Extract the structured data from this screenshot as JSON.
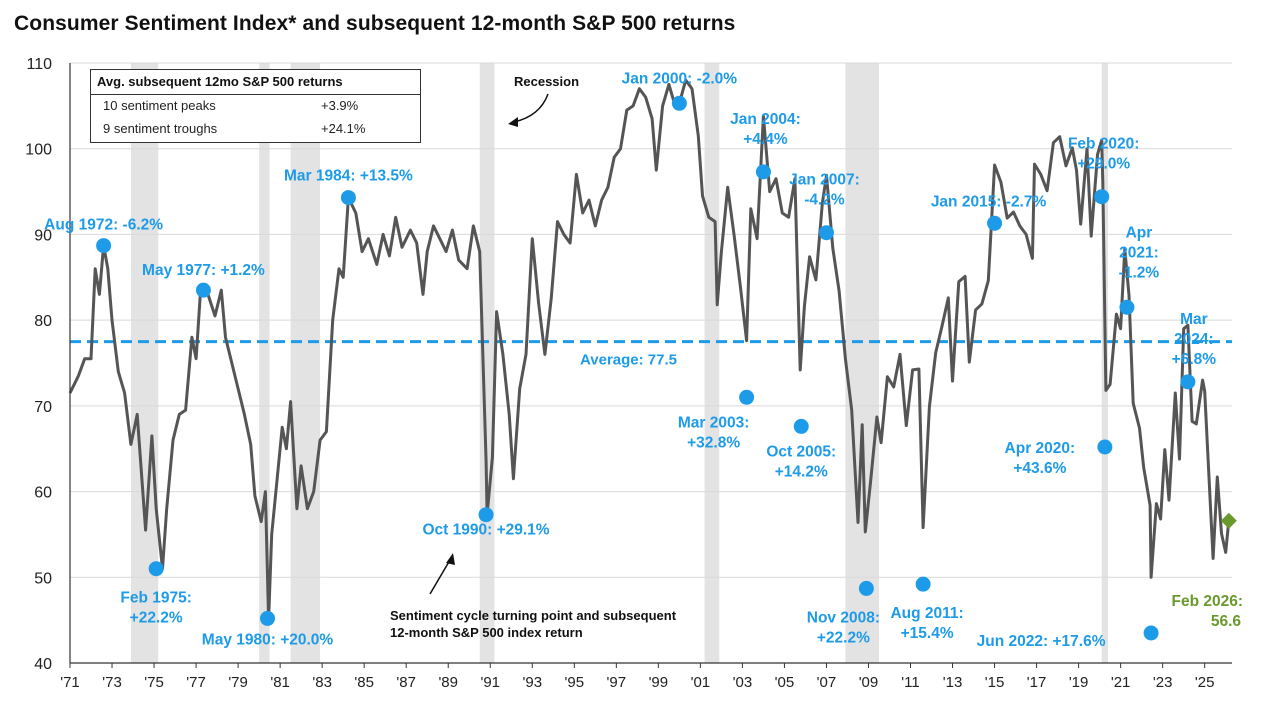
{
  "title": "Consumer Sentiment Index* and subsequent 12-month S&P 500 returns",
  "table": {
    "header": "Avg. subsequent 12mo S&P 500 returns",
    "rows": [
      {
        "label": "10 sentiment peaks",
        "value": "+3.9%"
      },
      {
        "label": "9 sentiment troughs",
        "value": "+24.1%"
      }
    ]
  },
  "annotations": {
    "recession": "Recession",
    "turning_point_line1": "Sentiment cycle turning point and subsequent",
    "turning_point_line2": "12-month S&P 500 index return"
  },
  "colors": {
    "line": "#555555",
    "marker": "#1e9be8",
    "label": "#1e9be8",
    "average": "#1e9be8",
    "latest": "#6a9a2e",
    "recession": "#e3e3e3",
    "grid": "#d9d9d9"
  },
  "chart_data": {
    "type": "line",
    "title": "Consumer Sentiment Index* and subsequent 12-month S&P 500 returns",
    "xlim": [
      1971,
      2026.3
    ],
    "ylim": [
      40,
      110
    ],
    "yticks": [
      40,
      50,
      60,
      70,
      80,
      90,
      100,
      110
    ],
    "xticks": [
      {
        "x": 1971,
        "label": "'71"
      },
      {
        "x": 1973,
        "label": "'73"
      },
      {
        "x": 1975,
        "label": "'75"
      },
      {
        "x": 1977,
        "label": "'77"
      },
      {
        "x": 1979,
        "label": "'79"
      },
      {
        "x": 1981,
        "label": "'81"
      },
      {
        "x": 1983,
        "label": "'83"
      },
      {
        "x": 1985,
        "label": "'85"
      },
      {
        "x": 1987,
        "label": "'87"
      },
      {
        "x": 1989,
        "label": "'89"
      },
      {
        "x": 1991,
        "label": "'91"
      },
      {
        "x": 1993,
        "label": "'93"
      },
      {
        "x": 1995,
        "label": "'95"
      },
      {
        "x": 1997,
        "label": "'97"
      },
      {
        "x": 1999,
        "label": "'99"
      },
      {
        "x": 2001,
        "label": "'01"
      },
      {
        "x": 2003,
        "label": "'03"
      },
      {
        "x": 2005,
        "label": "'05"
      },
      {
        "x": 2007,
        "label": "'07"
      },
      {
        "x": 2009,
        "label": "'09"
      },
      {
        "x": 2011,
        "label": "'11"
      },
      {
        "x": 2013,
        "label": "'13"
      },
      {
        "x": 2015,
        "label": "'15"
      },
      {
        "x": 2017,
        "label": "'17"
      },
      {
        "x": 2019,
        "label": "'19"
      },
      {
        "x": 2021,
        "label": "'21"
      },
      {
        "x": 2023,
        "label": "'23"
      },
      {
        "x": 2025,
        "label": "'25"
      }
    ],
    "grid": true,
    "recessions": [
      [
        1973.9,
        1975.2
      ],
      [
        1980.0,
        1980.5
      ],
      [
        1981.5,
        1982.9
      ],
      [
        1990.5,
        1991.2
      ],
      [
        2001.2,
        2001.9
      ],
      [
        2007.9,
        2009.5
      ],
      [
        2020.1,
        2020.4
      ]
    ],
    "average": {
      "value": 77.5,
      "label": "Average: 77.5"
    },
    "series": [
      {
        "values": [
          [
            1971.0,
            71.5
          ],
          [
            1971.4,
            73.5
          ],
          [
            1971.7,
            75.5
          ],
          [
            1972.0,
            75.5
          ],
          [
            1972.2,
            86.0
          ],
          [
            1972.4,
            83.0
          ],
          [
            1972.6,
            88.7
          ],
          [
            1972.8,
            86.0
          ],
          [
            1973.0,
            80.0
          ],
          [
            1973.3,
            74.0
          ],
          [
            1973.6,
            71.5
          ],
          [
            1973.9,
            65.5
          ],
          [
            1974.2,
            69.0
          ],
          [
            1974.6,
            55.5
          ],
          [
            1974.9,
            66.5
          ],
          [
            1975.1,
            58.0
          ],
          [
            1975.4,
            51.0
          ],
          [
            1975.6,
            58.0
          ],
          [
            1975.9,
            66.0
          ],
          [
            1976.2,
            69.0
          ],
          [
            1976.5,
            69.5
          ],
          [
            1976.8,
            78.0
          ],
          [
            1977.0,
            75.5
          ],
          [
            1977.2,
            83.0
          ],
          [
            1977.5,
            83.5
          ],
          [
            1977.7,
            82.0
          ],
          [
            1977.9,
            80.5
          ],
          [
            1978.2,
            83.5
          ],
          [
            1978.4,
            78.0
          ],
          [
            1978.7,
            75.0
          ],
          [
            1979.0,
            72.0
          ],
          [
            1979.3,
            69.0
          ],
          [
            1979.6,
            65.5
          ],
          [
            1979.8,
            59.5
          ],
          [
            1980.1,
            56.5
          ],
          [
            1980.3,
            60.0
          ],
          [
            1980.45,
            45.0
          ],
          [
            1980.6,
            55.0
          ],
          [
            1980.9,
            62.5
          ],
          [
            1981.1,
            67.5
          ],
          [
            1981.3,
            65.0
          ],
          [
            1981.5,
            70.5
          ],
          [
            1981.8,
            58.0
          ],
          [
            1982.0,
            63.0
          ],
          [
            1982.3,
            58.0
          ],
          [
            1982.6,
            60.0
          ],
          [
            1982.9,
            66.0
          ],
          [
            1983.2,
            67.0
          ],
          [
            1983.5,
            80.0
          ],
          [
            1983.8,
            86.0
          ],
          [
            1984.0,
            85.0
          ],
          [
            1984.25,
            94.3
          ],
          [
            1984.6,
            92.5
          ],
          [
            1984.9,
            88.0
          ],
          [
            1985.2,
            89.5
          ],
          [
            1985.6,
            86.5
          ],
          [
            1985.9,
            90.0
          ],
          [
            1986.2,
            87.5
          ],
          [
            1986.5,
            92.0
          ],
          [
            1986.8,
            88.5
          ],
          [
            1987.2,
            90.5
          ],
          [
            1987.5,
            89.0
          ],
          [
            1987.8,
            83.0
          ],
          [
            1988.0,
            88.0
          ],
          [
            1988.3,
            91.0
          ],
          [
            1988.6,
            89.5
          ],
          [
            1988.9,
            88.0
          ],
          [
            1989.2,
            90.5
          ],
          [
            1989.5,
            87.0
          ],
          [
            1989.9,
            86.0
          ],
          [
            1990.2,
            91.0
          ],
          [
            1990.5,
            88.0
          ],
          [
            1990.8,
            63.5
          ],
          [
            1990.85,
            57.3
          ],
          [
            1991.1,
            64.0
          ],
          [
            1991.3,
            81.0
          ],
          [
            1991.6,
            76.0
          ],
          [
            1991.9,
            69.0
          ],
          [
            1992.1,
            61.5
          ],
          [
            1992.4,
            72.0
          ],
          [
            1992.7,
            76.0
          ],
          [
            1993.0,
            89.5
          ],
          [
            1993.3,
            82.0
          ],
          [
            1993.6,
            76.0
          ],
          [
            1993.9,
            82.5
          ],
          [
            1994.2,
            91.5
          ],
          [
            1994.5,
            90.0
          ],
          [
            1994.8,
            89.0
          ],
          [
            1995.1,
            97.0
          ],
          [
            1995.4,
            92.5
          ],
          [
            1995.7,
            94.0
          ],
          [
            1996.0,
            91.0
          ],
          [
            1996.3,
            94.0
          ],
          [
            1996.6,
            95.5
          ],
          [
            1996.9,
            99.0
          ],
          [
            1997.2,
            100.0
          ],
          [
            1997.5,
            104.5
          ],
          [
            1997.8,
            105.0
          ],
          [
            1998.1,
            107.0
          ],
          [
            1998.4,
            106.0
          ],
          [
            1998.7,
            103.5
          ],
          [
            1998.9,
            97.5
          ],
          [
            1999.2,
            105.0
          ],
          [
            1999.5,
            107.5
          ],
          [
            1999.8,
            105.0
          ],
          [
            2000.0,
            105.3
          ],
          [
            2000.3,
            108.0
          ],
          [
            2000.6,
            107.0
          ],
          [
            2000.9,
            101.5
          ],
          [
            2001.1,
            94.5
          ],
          [
            2001.4,
            92.0
          ],
          [
            2001.7,
            91.5
          ],
          [
            2001.8,
            81.8
          ],
          [
            2002.0,
            88.0
          ],
          [
            2002.3,
            95.5
          ],
          [
            2002.6,
            90.0
          ],
          [
            2002.9,
            84.0
          ],
          [
            2003.2,
            77.6
          ],
          [
            2003.4,
            93.0
          ],
          [
            2003.7,
            89.5
          ],
          [
            2004.0,
            103.8
          ],
          [
            2004.3,
            95.0
          ],
          [
            2004.6,
            96.5
          ],
          [
            2004.9,
            92.5
          ],
          [
            2005.2,
            92.0
          ],
          [
            2005.5,
            96.5
          ],
          [
            2005.75,
            74.2
          ],
          [
            2005.95,
            81.6
          ],
          [
            2006.2,
            87.4
          ],
          [
            2006.5,
            84.7
          ],
          [
            2006.8,
            93.6
          ],
          [
            2007.0,
            96.9
          ],
          [
            2007.3,
            88.4
          ],
          [
            2007.6,
            83.4
          ],
          [
            2007.9,
            75.5
          ],
          [
            2008.2,
            69.5
          ],
          [
            2008.5,
            56.4
          ],
          [
            2008.7,
            67.8
          ],
          [
            2008.85,
            55.3
          ],
          [
            2009.1,
            61.2
          ],
          [
            2009.4,
            68.7
          ],
          [
            2009.6,
            65.7
          ],
          [
            2009.9,
            73.4
          ],
          [
            2010.2,
            72.2
          ],
          [
            2010.5,
            76.0
          ],
          [
            2010.8,
            67.7
          ],
          [
            2011.1,
            74.2
          ],
          [
            2011.4,
            74.3
          ],
          [
            2011.6,
            55.8
          ],
          [
            2011.9,
            69.9
          ],
          [
            2012.2,
            76.2
          ],
          [
            2012.5,
            79.3
          ],
          [
            2012.8,
            82.6
          ],
          [
            2013.0,
            72.9
          ],
          [
            2013.3,
            84.5
          ],
          [
            2013.6,
            85.1
          ],
          [
            2013.8,
            75.1
          ],
          [
            2014.1,
            81.2
          ],
          [
            2014.4,
            81.9
          ],
          [
            2014.7,
            84.6
          ],
          [
            2014.9,
            93.6
          ],
          [
            2015.0,
            98.1
          ],
          [
            2015.3,
            96.1
          ],
          [
            2015.6,
            91.9
          ],
          [
            2015.9,
            92.6
          ],
          [
            2016.2,
            91.0
          ],
          [
            2016.5,
            90.0
          ],
          [
            2016.8,
            87.2
          ],
          [
            2016.9,
            98.2
          ],
          [
            2017.2,
            97.0
          ],
          [
            2017.5,
            95.1
          ],
          [
            2017.8,
            100.7
          ],
          [
            2018.1,
            101.4
          ],
          [
            2018.4,
            98.0
          ],
          [
            2018.7,
            100.1
          ],
          [
            2018.9,
            97.5
          ],
          [
            2019.1,
            91.2
          ],
          [
            2019.4,
            100.0
          ],
          [
            2019.6,
            89.8
          ],
          [
            2019.9,
            99.3
          ],
          [
            2020.1,
            101.0
          ],
          [
            2020.15,
            96.1
          ],
          [
            2020.3,
            71.8
          ],
          [
            2020.5,
            72.5
          ],
          [
            2020.8,
            80.7
          ],
          [
            2021.0,
            79.0
          ],
          [
            2021.2,
            88.3
          ],
          [
            2021.4,
            82.9
          ],
          [
            2021.6,
            70.3
          ],
          [
            2021.9,
            67.4
          ],
          [
            2022.1,
            62.8
          ],
          [
            2022.4,
            58.4
          ],
          [
            2022.45,
            50.0
          ],
          [
            2022.7,
            58.6
          ],
          [
            2022.9,
            56.8
          ],
          [
            2023.1,
            64.9
          ],
          [
            2023.3,
            59.0
          ],
          [
            2023.6,
            71.5
          ],
          [
            2023.8,
            63.8
          ],
          [
            2024.0,
            79.0
          ],
          [
            2024.2,
            79.4
          ],
          [
            2024.4,
            68.2
          ],
          [
            2024.6,
            67.9
          ],
          [
            2024.9,
            73.0
          ],
          [
            2025.0,
            71.7
          ],
          [
            2025.3,
            57.0
          ],
          [
            2025.4,
            52.2
          ],
          [
            2025.6,
            61.7
          ],
          [
            2025.8,
            55.1
          ],
          [
            2026.0,
            52.9
          ],
          [
            2026.15,
            56.6
          ]
        ]
      }
    ],
    "peaks": [
      {
        "x": 1972.6,
        "y": 88.7,
        "label": "Aug 1972: -6.2%"
      },
      {
        "x": 1977.35,
        "y": 83.5,
        "label": "May 1977: +1.2%"
      },
      {
        "x": 1984.25,
        "y": 94.3,
        "label": "Mar 1984: +13.5%"
      },
      {
        "x": 2000.0,
        "y": 105.3,
        "label": "Jan 2000: -2.0%"
      },
      {
        "x": 2004.0,
        "y": 97.3,
        "label1": "Jan 2004:",
        "label2": "+4.4%"
      },
      {
        "x": 2007.0,
        "y": 90.2,
        "label1": "Jan 2007:",
        "label2": "-4.2%"
      },
      {
        "x": 2015.0,
        "y": 91.3,
        "label": "Jan 2015: -2.7%"
      },
      {
        "x": 2020.1,
        "y": 94.4,
        "label1": "Feb 2020:",
        "label2": "+29.0%"
      },
      {
        "x": 2021.3,
        "y": 81.5,
        "label1": "Apr",
        "label2": "2021:",
        "label3": "-1.2%"
      },
      {
        "x": 2024.2,
        "y": 72.8,
        "label1": "Mar",
        "label2": "2024:",
        "label3": "+6.8%"
      }
    ],
    "troughs": [
      {
        "x": 1975.1,
        "y": 51.0,
        "label1": "Feb 1975:",
        "label2": "+22.2%"
      },
      {
        "x": 1980.4,
        "y": 45.2,
        "label": "May 1980: +20.0%"
      },
      {
        "x": 1990.8,
        "y": 57.3,
        "label": "Oct 1990: +29.1%"
      },
      {
        "x": 2003.2,
        "y": 71.0,
        "label1": "Mar 2003:",
        "label2": "+32.8%"
      },
      {
        "x": 2005.8,
        "y": 67.6,
        "label1": "Oct 2005:",
        "label2": "+14.2%"
      },
      {
        "x": 2008.9,
        "y": 48.7,
        "label1": "Nov 2008:",
        "label2": "+22.2%"
      },
      {
        "x": 2011.6,
        "y": 49.2,
        "label1": "Aug 2011:",
        "label2": "+15.4%"
      },
      {
        "x": 2020.25,
        "y": 65.2,
        "label1": "Apr 2020:",
        "label2": "+43.6%"
      },
      {
        "x": 2022.45,
        "y": 43.5,
        "label": "Jun 2022: +17.6%"
      }
    ],
    "latest": {
      "x": 2026.15,
      "y": 56.6,
      "label1": "Feb 2026:",
      "label2": "56.6"
    }
  }
}
